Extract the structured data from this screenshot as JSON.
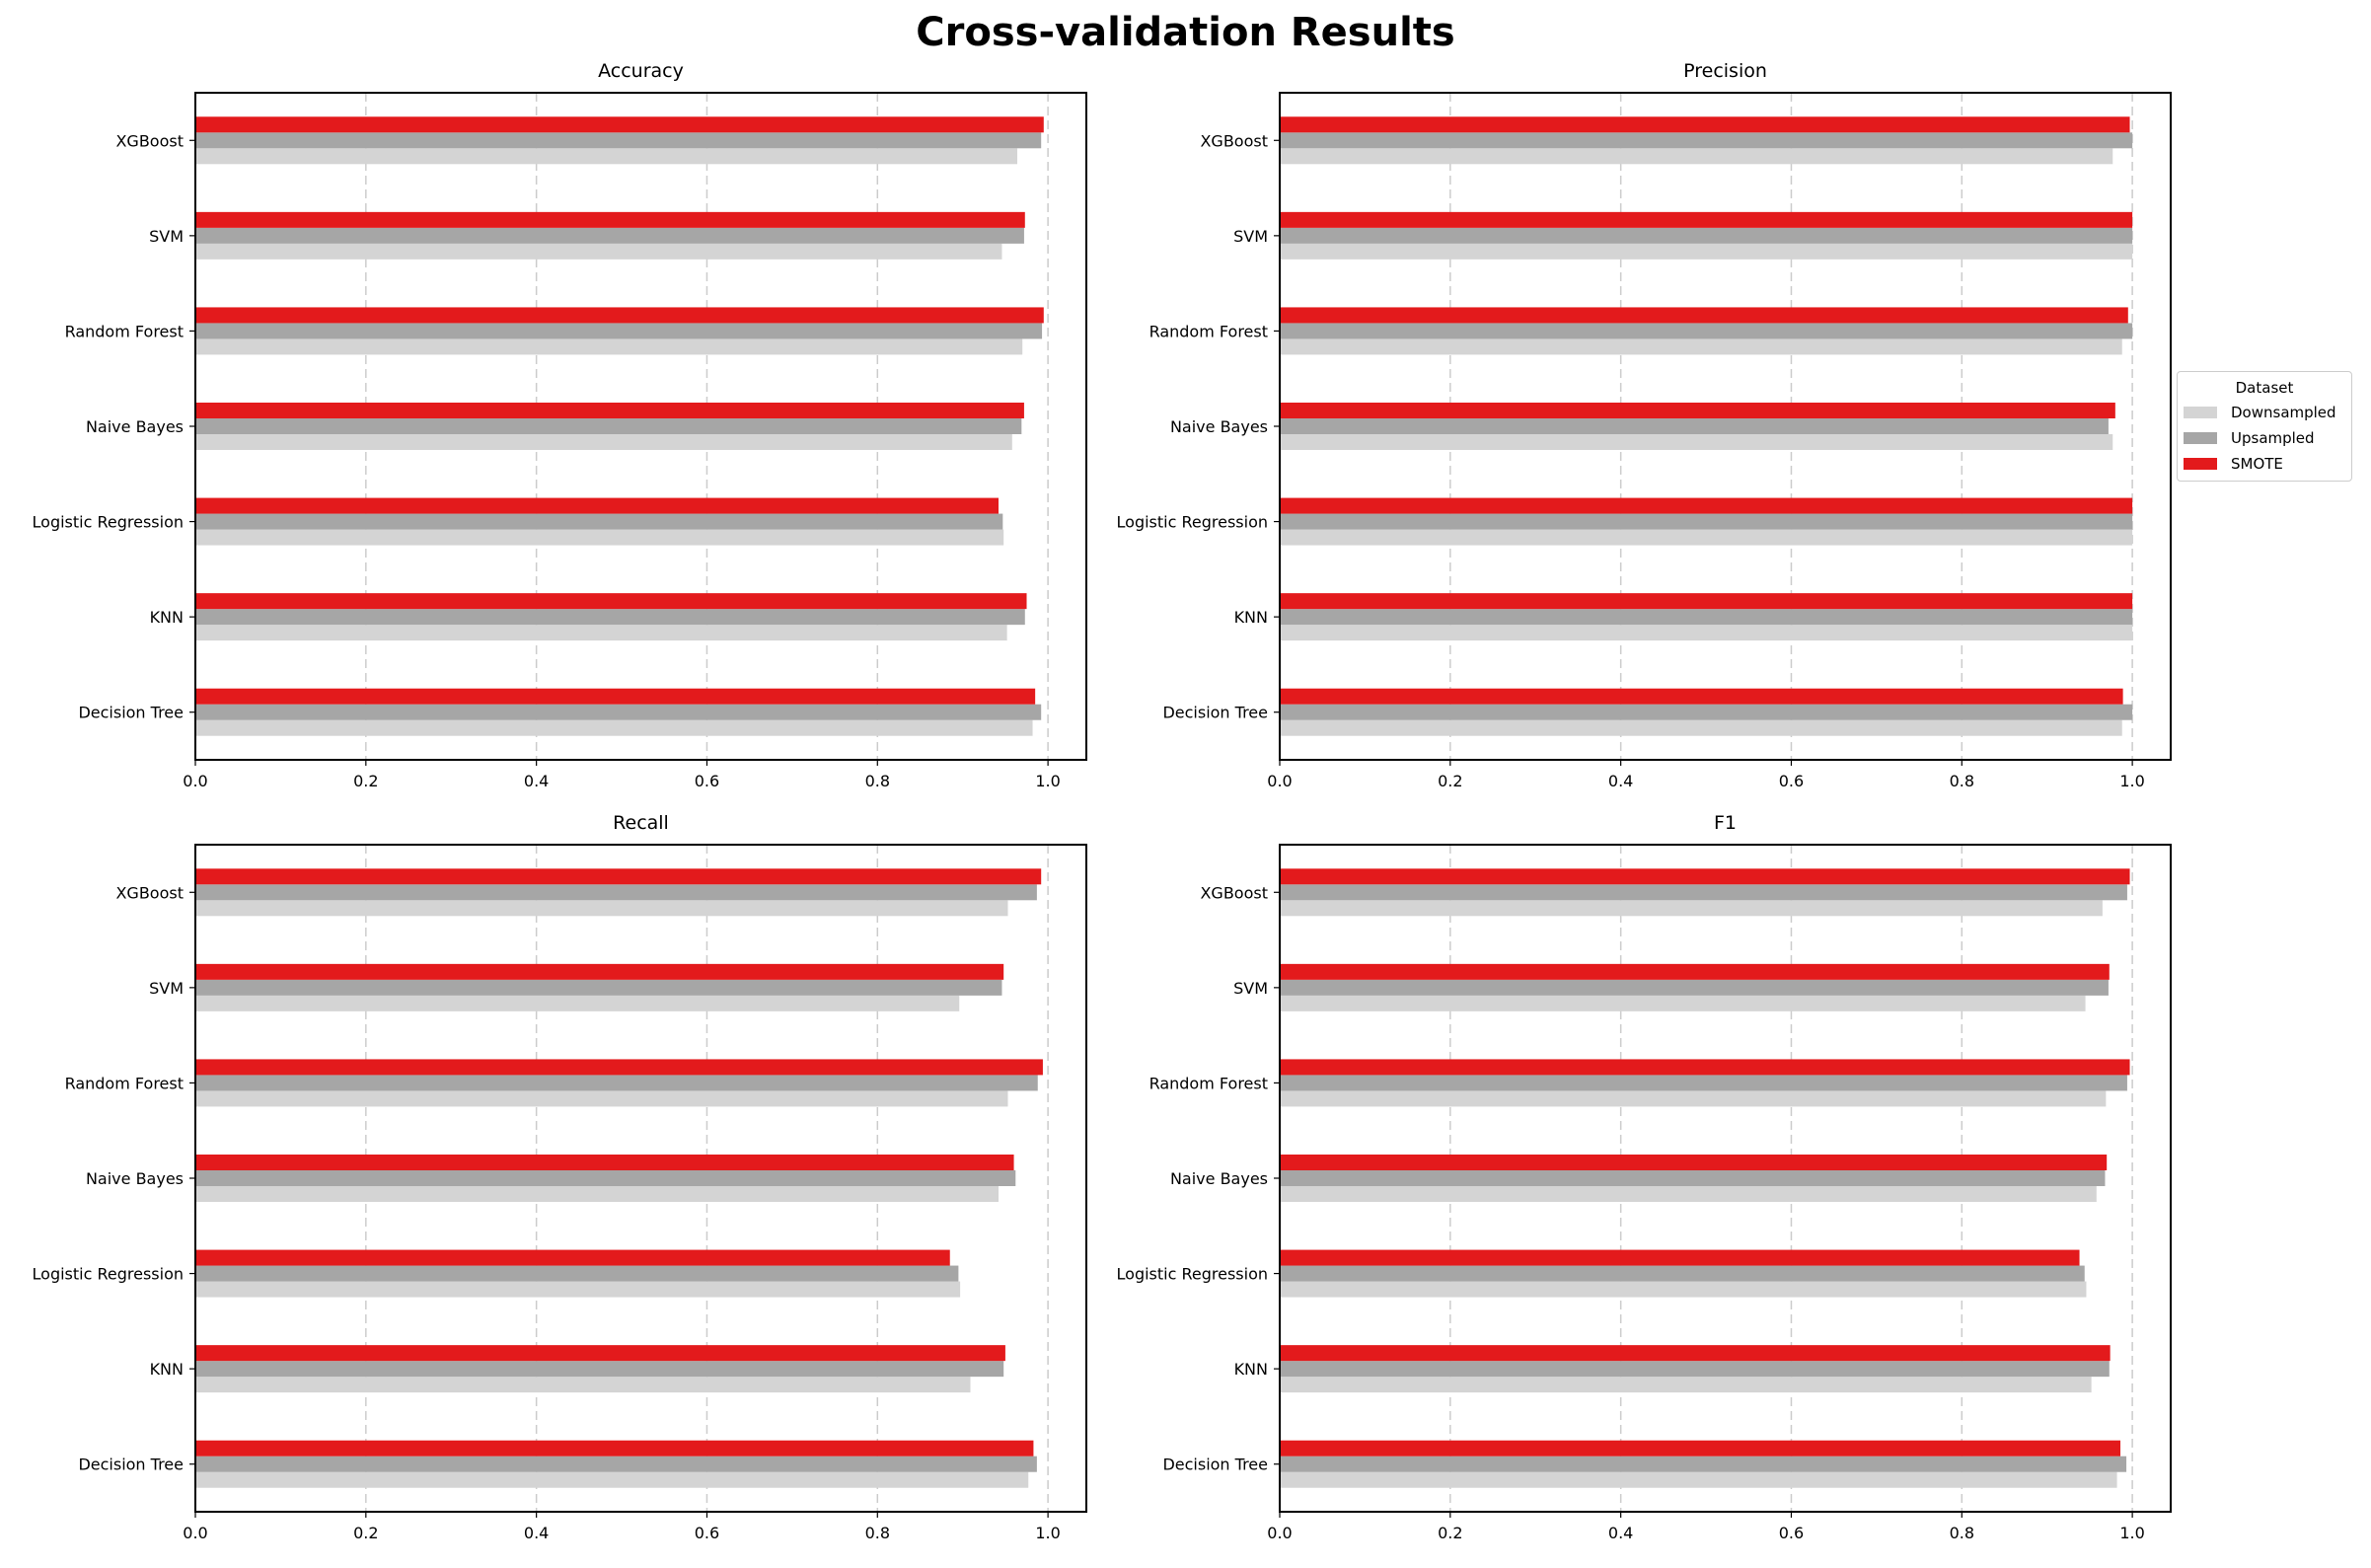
{
  "figure": {
    "title": "Cross-validation Results"
  },
  "legend": {
    "title": "Dataset",
    "items": [
      {
        "label": "Downsampled",
        "color": "#d4d4d4"
      },
      {
        "label": "Upsampled",
        "color": "#a6a6a6"
      },
      {
        "label": "SMOTE",
        "color": "#e31a1c"
      }
    ]
  },
  "chart_data": [
    {
      "type": "bar",
      "orientation": "horizontal",
      "title": "Accuracy",
      "xlabel": "",
      "ylabel": "",
      "categories": [
        "Decision Tree",
        "KNN",
        "Logistic Regression",
        "Naive Bayes",
        "Random Forest",
        "SVM",
        "XGBoost"
      ],
      "x_ticks": [
        "0.0",
        "0.2",
        "0.4",
        "0.6",
        "0.8",
        "1.0"
      ],
      "xlim": [
        0,
        1.045
      ],
      "grid": "x, dashed",
      "series": [
        {
          "name": "Downsampled",
          "color": "#d4d4d4",
          "values": [
            0.982,
            0.952,
            0.948,
            0.958,
            0.97,
            0.946,
            0.964
          ]
        },
        {
          "name": "Upsampled",
          "color": "#a6a6a6",
          "values": [
            0.992,
            0.973,
            0.947,
            0.969,
            0.993,
            0.972,
            0.992
          ]
        },
        {
          "name": "SMOTE",
          "color": "#e31a1c",
          "values": [
            0.985,
            0.975,
            0.942,
            0.972,
            0.995,
            0.973,
            0.995
          ]
        }
      ]
    },
    {
      "type": "bar",
      "orientation": "horizontal",
      "title": "Precision",
      "xlabel": "",
      "ylabel": "",
      "categories": [
        "Decision Tree",
        "KNN",
        "Logistic Regression",
        "Naive Bayes",
        "Random Forest",
        "SVM",
        "XGBoost"
      ],
      "x_ticks": [
        "0.0",
        "0.2",
        "0.4",
        "0.6",
        "0.8",
        "1.0"
      ],
      "xlim": [
        0,
        1.045
      ],
      "grid": "x, dashed",
      "series": [
        {
          "name": "Downsampled",
          "color": "#d4d4d4",
          "values": [
            0.988,
            1.0,
            1.0,
            0.977,
            0.988,
            1.0,
            0.977
          ]
        },
        {
          "name": "Upsampled",
          "color": "#a6a6a6",
          "values": [
            1.0,
            1.0,
            1.0,
            0.972,
            1.0,
            1.0,
            1.0
          ]
        },
        {
          "name": "SMOTE",
          "color": "#e31a1c",
          "values": [
            0.989,
            1.0,
            1.0,
            0.98,
            0.995,
            1.0,
            0.997
          ]
        }
      ]
    },
    {
      "type": "bar",
      "orientation": "horizontal",
      "title": "Recall",
      "xlabel": "",
      "ylabel": "",
      "categories": [
        "Decision Tree",
        "KNN",
        "Logistic Regression",
        "Naive Bayes",
        "Random Forest",
        "SVM",
        "XGBoost"
      ],
      "x_ticks": [
        "0.0",
        "0.2",
        "0.4",
        "0.6",
        "0.8",
        "1.0"
      ],
      "xlim": [
        0,
        1.045
      ],
      "grid": "x, dashed",
      "series": [
        {
          "name": "Downsampled",
          "color": "#d4d4d4",
          "values": [
            0.977,
            0.909,
            0.897,
            0.942,
            0.953,
            0.896,
            0.953
          ]
        },
        {
          "name": "Upsampled",
          "color": "#a6a6a6",
          "values": [
            0.987,
            0.948,
            0.895,
            0.962,
            0.988,
            0.946,
            0.987
          ]
        },
        {
          "name": "SMOTE",
          "color": "#e31a1c",
          "values": [
            0.983,
            0.95,
            0.885,
            0.96,
            0.994,
            0.948,
            0.992
          ]
        }
      ]
    },
    {
      "type": "bar",
      "orientation": "horizontal",
      "title": "F1",
      "xlabel": "",
      "ylabel": "",
      "categories": [
        "Decision Tree",
        "KNN",
        "Logistic Regression",
        "Naive Bayes",
        "Random Forest",
        "SVM",
        "XGBoost"
      ],
      "x_ticks": [
        "0.0",
        "0.2",
        "0.4",
        "0.6",
        "0.8",
        "1.0"
      ],
      "xlim": [
        0,
        1.045
      ],
      "grid": "x, dashed",
      "series": [
        {
          "name": "Downsampled",
          "color": "#d4d4d4",
          "values": [
            0.982,
            0.952,
            0.946,
            0.958,
            0.969,
            0.945,
            0.965
          ]
        },
        {
          "name": "Upsampled",
          "color": "#a6a6a6",
          "values": [
            0.993,
            0.973,
            0.944,
            0.968,
            0.994,
            0.972,
            0.994
          ]
        },
        {
          "name": "SMOTE",
          "color": "#e31a1c",
          "values": [
            0.986,
            0.974,
            0.938,
            0.97,
            0.997,
            0.973,
            0.997
          ]
        }
      ]
    }
  ]
}
